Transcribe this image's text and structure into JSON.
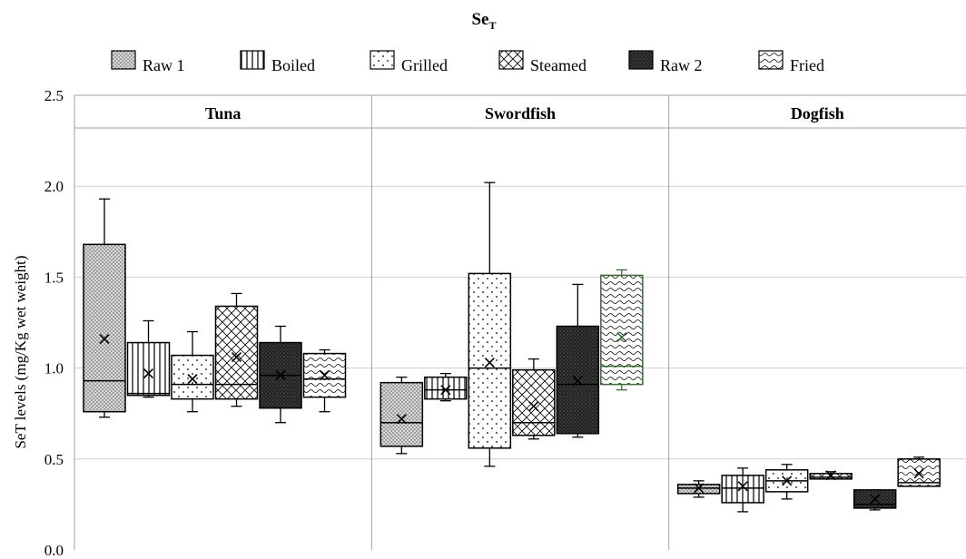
{
  "chart_data": {
    "type": "box",
    "title": "Se",
    "title_sub": "T",
    "ylabel": "SeT levels (mg/Kg wet weight)",
    "ylim": [
      0,
      2.5
    ],
    "yticks": [
      "0.0",
      "0.5",
      "1.0",
      "1.5",
      "2.0",
      "2.5"
    ],
    "legend": {
      "placement": "top",
      "items": [
        {
          "name": "Raw 1",
          "pattern": "fine-dots"
        },
        {
          "name": "Boiled",
          "pattern": "vertical-lines"
        },
        {
          "name": "Grilled",
          "pattern": "sparse-dots"
        },
        {
          "name": "Steamed",
          "pattern": "crosshatch"
        },
        {
          "name": "Raw 2",
          "pattern": "dark-dense"
        },
        {
          "name": "Fried",
          "pattern": "wavy"
        }
      ]
    },
    "panels": [
      {
        "name": "Tuna",
        "boxes": [
          {
            "series": "Raw 1",
            "min": 0.73,
            "q1": 0.76,
            "median": 0.93,
            "q3": 1.68,
            "max": 1.93,
            "mean": 1.16
          },
          {
            "series": "Boiled",
            "min": 0.84,
            "q1": 0.85,
            "median": 0.86,
            "q3": 1.14,
            "max": 1.26,
            "mean": 0.97
          },
          {
            "series": "Grilled",
            "min": 0.76,
            "q1": 0.83,
            "median": 0.91,
            "q3": 1.07,
            "max": 1.2,
            "mean": 0.94
          },
          {
            "series": "Steamed",
            "min": 0.79,
            "q1": 0.83,
            "median": 0.91,
            "q3": 1.34,
            "max": 1.41,
            "mean": 1.06
          },
          {
            "series": "Raw 2",
            "min": 0.7,
            "q1": 0.78,
            "median": 0.96,
            "q3": 1.14,
            "max": 1.23,
            "mean": 0.96
          },
          {
            "series": "Fried",
            "min": 0.76,
            "q1": 0.84,
            "median": 0.94,
            "q3": 1.08,
            "max": 1.1,
            "mean": 0.96
          }
        ]
      },
      {
        "name": "Swordfish",
        "boxes": [
          {
            "series": "Raw 1",
            "min": 0.53,
            "q1": 0.57,
            "median": 0.7,
            "q3": 0.92,
            "max": 0.95,
            "mean": 0.72
          },
          {
            "series": "Boiled",
            "min": 0.82,
            "q1": 0.83,
            "median": 0.88,
            "q3": 0.95,
            "max": 0.97,
            "mean": 0.88
          },
          {
            "series": "Grilled",
            "min": 0.46,
            "q1": 0.56,
            "median": 1.0,
            "q3": 1.52,
            "max": 2.02,
            "mean": 1.03
          },
          {
            "series": "Steamed",
            "min": 0.61,
            "q1": 0.63,
            "median": 0.7,
            "q3": 0.99,
            "max": 1.05,
            "mean": 0.79
          },
          {
            "series": "Raw 2",
            "min": 0.62,
            "q1": 0.64,
            "median": 0.91,
            "q3": 1.23,
            "max": 1.46,
            "mean": 0.93
          },
          {
            "series": "Fried",
            "min": 0.88,
            "q1": 0.91,
            "median": 1.01,
            "q3": 1.51,
            "max": 1.54,
            "mean": 1.17,
            "color": "#3a6b35"
          }
        ]
      },
      {
        "name": "Dogfish",
        "boxes": [
          {
            "series": "Raw 1",
            "min": 0.29,
            "q1": 0.31,
            "median": 0.34,
            "q3": 0.36,
            "max": 0.38,
            "mean": 0.34
          },
          {
            "series": "Boiled",
            "min": 0.21,
            "q1": 0.26,
            "median": 0.34,
            "q3": 0.41,
            "max": 0.45,
            "mean": 0.35
          },
          {
            "series": "Grilled",
            "min": 0.28,
            "q1": 0.32,
            "median": 0.38,
            "q3": 0.44,
            "max": 0.47,
            "mean": 0.38
          },
          {
            "series": "Steamed",
            "min": 0.39,
            "q1": 0.39,
            "median": 0.4,
            "q3": 0.42,
            "max": 0.43,
            "mean": 0.41
          },
          {
            "series": "Raw 2",
            "min": 0.22,
            "q1": 0.23,
            "median": 0.25,
            "q3": 0.33,
            "max": 0.33,
            "mean": 0.28
          },
          {
            "series": "Fried",
            "min": 0.35,
            "q1": 0.35,
            "median": 0.37,
            "q3": 0.5,
            "max": 0.51,
            "mean": 0.42
          }
        ]
      }
    ]
  }
}
